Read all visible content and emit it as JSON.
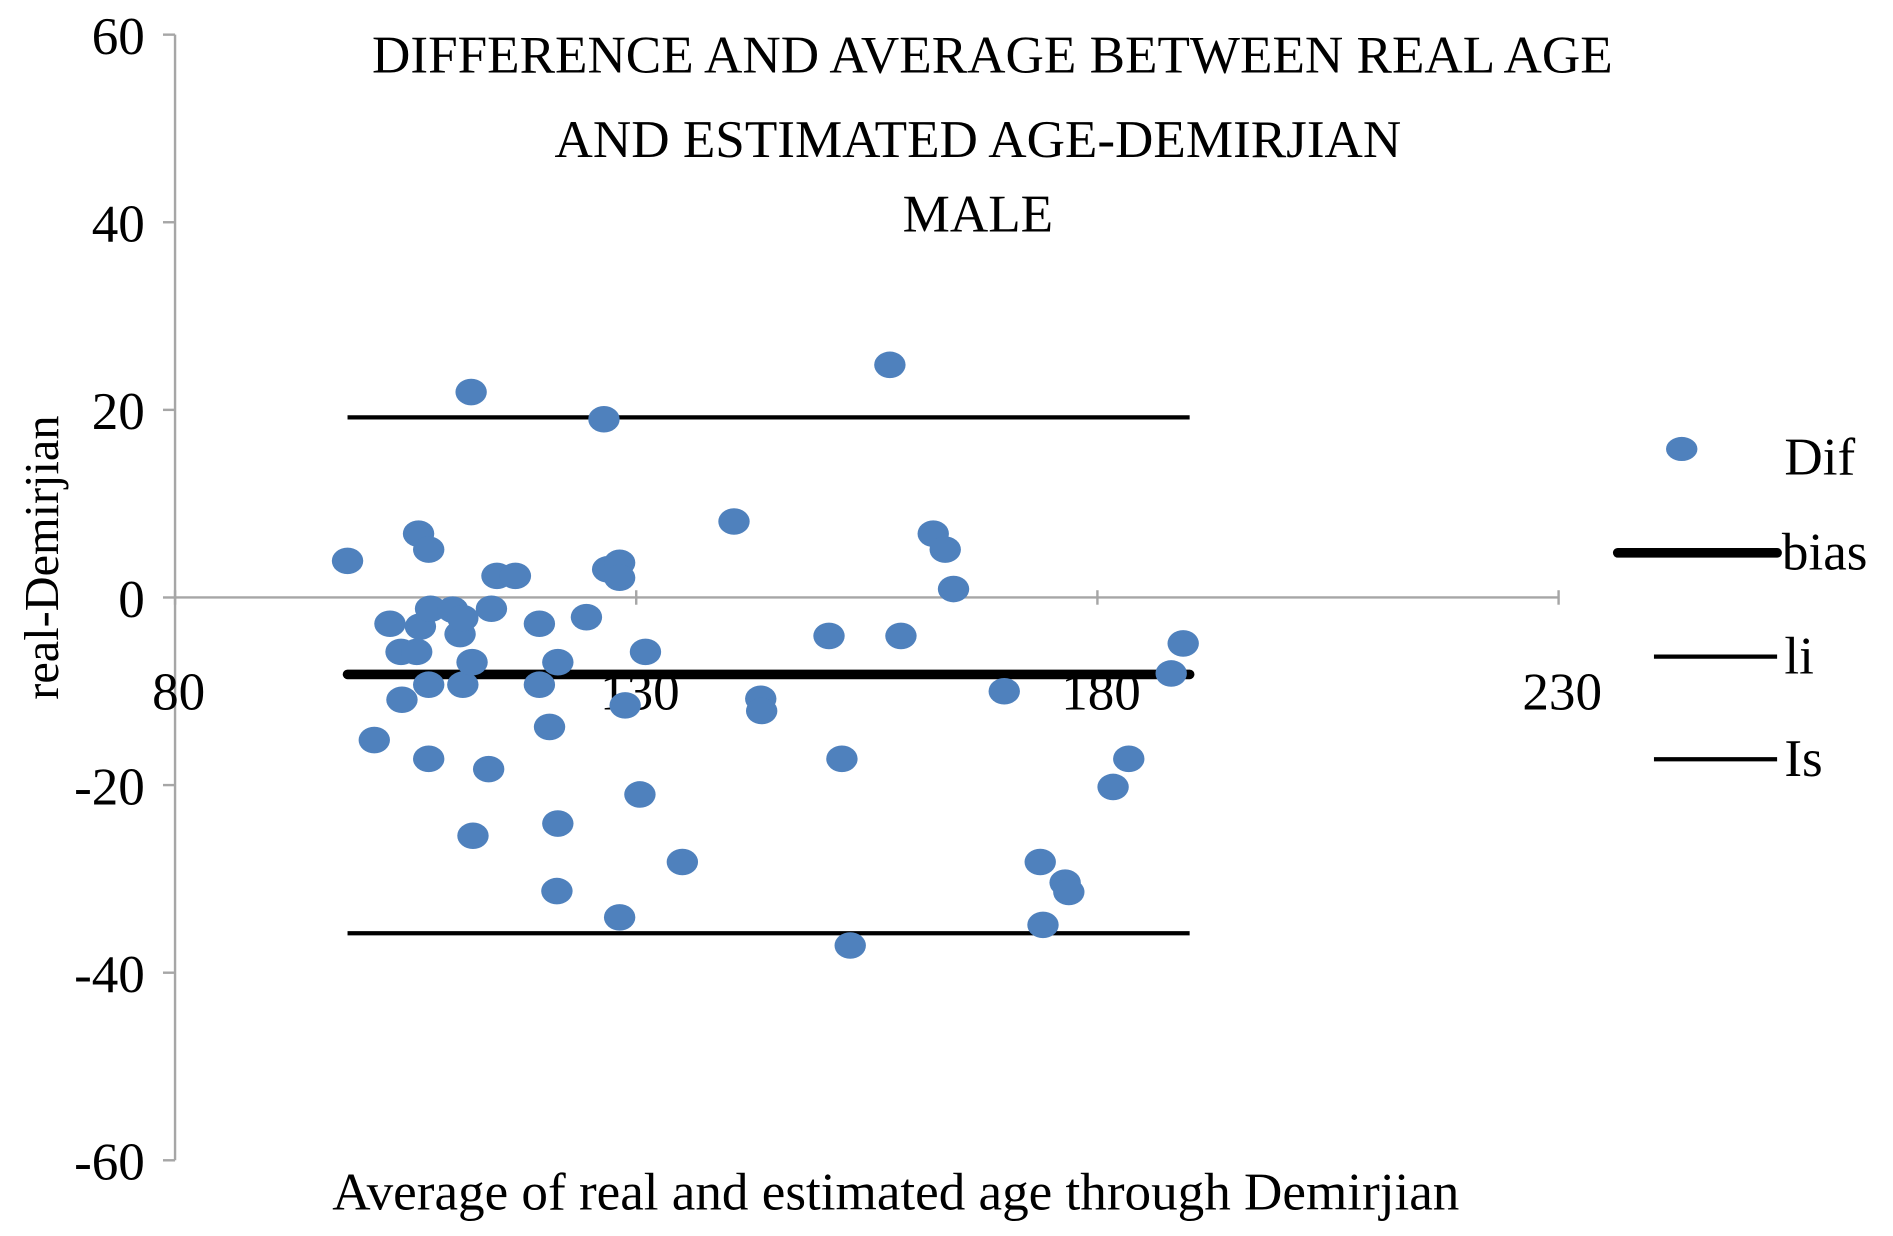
{
  "chart_data": {
    "type": "scatter",
    "title_lines": [
      "DIFFERENCE AND AVERAGE BETWEEN REAL AGE",
      "AND ESTIMATED AGE-DEMIRJIAN",
      "MALE"
    ],
    "xlabel": "Average of real and estimated age through Demirjian",
    "ylabel": "real-Demirjian",
    "xlim": [
      80,
      230
    ],
    "ylim": [
      -60,
      60
    ],
    "x_ticks": [
      80,
      130,
      180,
      230
    ],
    "y_ticks": [
      -60,
      -40,
      -20,
      0,
      20,
      40,
      60
    ],
    "grid": false,
    "legend_position": "right",
    "colors": {
      "points": "#4F81BD",
      "lines": "#000000",
      "axis": "#A6A6A6"
    },
    "series": [
      {
        "name": "Dif",
        "kind": "points",
        "points": [
          [
            98.7,
            3.9
          ],
          [
            101.6,
            -15.2
          ],
          [
            103.3,
            -2.8
          ],
          [
            104.6,
            -10.9
          ],
          [
            104.5,
            -5.8
          ],
          [
            106.2,
            -5.8
          ],
          [
            106.4,
            6.8
          ],
          [
            106.6,
            -3.1
          ],
          [
            107.5,
            5.1
          ],
          [
            107.5,
            -17.2
          ],
          [
            107.5,
            -9.3
          ],
          [
            107.7,
            -1.2
          ],
          [
            110.1,
            -1.3
          ],
          [
            110.9,
            -3.9
          ],
          [
            111.2,
            -2.2
          ],
          [
            111.2,
            -9.3
          ],
          [
            112.1,
            21.9
          ],
          [
            112.2,
            -6.9
          ],
          [
            112.3,
            -25.4
          ],
          [
            114.0,
            -18.3
          ],
          [
            114.3,
            -1.2
          ],
          [
            114.9,
            2.3
          ],
          [
            116.9,
            2.3
          ],
          [
            119.5,
            -2.8
          ],
          [
            119.5,
            -9.3
          ],
          [
            120.6,
            -13.8
          ],
          [
            121.5,
            -6.9
          ],
          [
            121.5,
            -24.1
          ],
          [
            121.4,
            -31.3
          ],
          [
            124.6,
            -2.1
          ],
          [
            126.5,
            19.0
          ],
          [
            126.9,
            3.0
          ],
          [
            128.2,
            3.7
          ],
          [
            128.2,
            2.1
          ],
          [
            128.2,
            -34.1
          ],
          [
            128.8,
            -11.5
          ],
          [
            130.4,
            -21.0
          ],
          [
            131.0,
            -5.8
          ],
          [
            135.0,
            -28.2
          ],
          [
            140.6,
            8.1
          ],
          [
            143.5,
            -10.8
          ],
          [
            143.6,
            -12.1
          ],
          [
            150.9,
            -4.1
          ],
          [
            152.3,
            -17.2
          ],
          [
            153.2,
            -37.1
          ],
          [
            157.5,
            24.8
          ],
          [
            158.7,
            -4.1
          ],
          [
            162.2,
            6.8
          ],
          [
            163.5,
            5.1
          ],
          [
            164.4,
            0.9
          ],
          [
            169.9,
            -10.0
          ],
          [
            173.8,
            -28.2
          ],
          [
            174.1,
            -34.9
          ],
          [
            176.5,
            -30.4
          ],
          [
            176.9,
            -31.4
          ],
          [
            181.7,
            -20.2
          ],
          [
            183.4,
            -17.2
          ],
          [
            188.0,
            -8.1
          ],
          [
            189.3,
            -4.9
          ]
        ]
      },
      {
        "name": "bias",
        "kind": "line",
        "y": -8.2,
        "x_range": [
          98.7,
          190
        ],
        "weight": "thick"
      },
      {
        "name": "li",
        "kind": "line",
        "y": -35.8,
        "x_range": [
          98.7,
          190
        ],
        "weight": "thin"
      },
      {
        "name": "Is",
        "kind": "line",
        "y": 19.2,
        "x_range": [
          98.7,
          190
        ],
        "weight": "thin"
      }
    ]
  }
}
